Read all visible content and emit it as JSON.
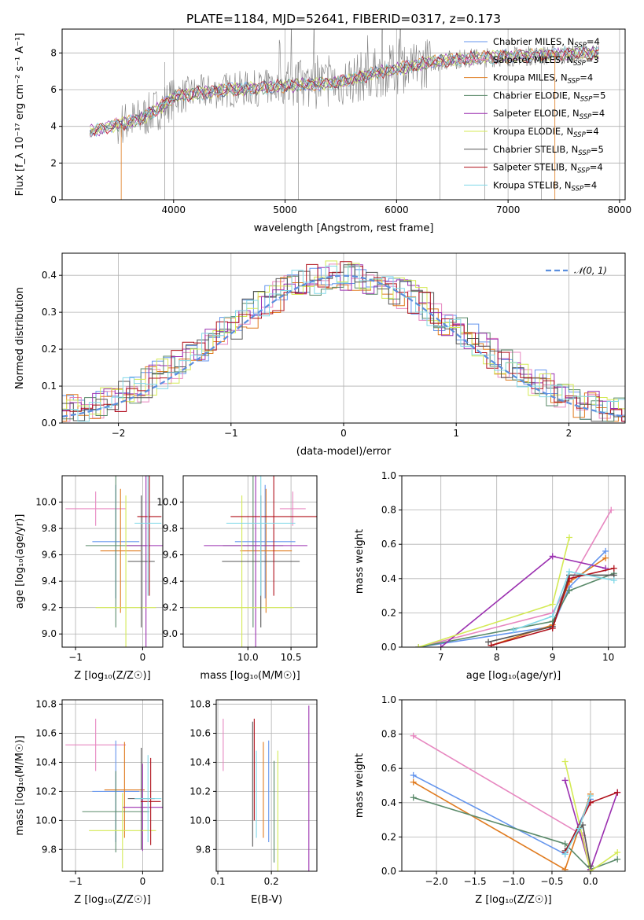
{
  "figure": {
    "title": "PLATE=1184, MJD=52641, FIBERID=0317, z=0.173"
  },
  "colors": {
    "Chabrier MILES": "#6495ed",
    "Salpeter MILES": "#e787c0",
    "Kroupa MILES": "#e07b1f",
    "Chabrier ELODIE": "#5a8a6a",
    "Salpeter ELODIE": "#9b30b0",
    "Kroupa ELODIE": "#d4ea55",
    "Chabrier STELIB": "#555555",
    "Salpeter STELIB": "#b0101a",
    "Kroupa STELIB": "#80d8e8",
    "data": "#808080",
    "normal": "#5b8fde"
  },
  "chart_data": [
    {
      "id": "spectrum",
      "type": "line",
      "xlabel": "wavelength [Angstrom, rest frame]",
      "ylabel": "Flux [f_λ 10⁻¹⁷ erg cm⁻² s⁻¹ A⁻¹]",
      "xlim": [
        3000,
        8050
      ],
      "ylim": [
        0,
        9.3
      ],
      "xticks": [
        4000,
        5000,
        6000,
        7000,
        8000
      ],
      "yticks": [
        0,
        2,
        4,
        6,
        8
      ],
      "legend_position": "top-right",
      "legend": [
        {
          "name": "Chabrier MILES",
          "nssp": "4"
        },
        {
          "name": "Salpeter MILES",
          "nssp": "3"
        },
        {
          "name": "Kroupa MILES",
          "nssp": "4"
        },
        {
          "name": "Chabrier ELODIE",
          "nssp": "5"
        },
        {
          "name": "Salpeter ELODIE",
          "nssp": "4"
        },
        {
          "name": "Kroupa ELODIE",
          "nssp": "4"
        },
        {
          "name": "Chabrier STELIB",
          "nssp": "5"
        },
        {
          "name": "Salpeter STELIB",
          "nssp": "4"
        },
        {
          "name": "Kroupa STELIB",
          "nssp": "4"
        }
      ],
      "continuum": [
        [
          3250,
          3.7
        ],
        [
          3500,
          4.1
        ],
        [
          3700,
          4.4
        ],
        [
          3900,
          5.1
        ],
        [
          4000,
          5.6
        ],
        [
          4200,
          5.8
        ],
        [
          4500,
          6.0
        ],
        [
          4800,
          6.1
        ],
        [
          5000,
          6.2
        ],
        [
          5500,
          6.4
        ],
        [
          5800,
          6.9
        ],
        [
          6000,
          7.1
        ],
        [
          6300,
          7.5
        ],
        [
          6600,
          7.7
        ],
        [
          7000,
          7.8
        ],
        [
          7400,
          7.9
        ],
        [
          7800,
          8.0
        ]
      ]
    },
    {
      "id": "residuals",
      "type": "line",
      "xlabel": "(data-model)/error",
      "ylabel": "Normed distribution",
      "xlim": [
        -2.5,
        2.5
      ],
      "ylim": [
        0,
        0.46
      ],
      "xticks": [
        -2,
        -1,
        0,
        1,
        2
      ],
      "yticks": [
        0.0,
        0.1,
        0.2,
        0.3,
        0.4
      ],
      "legend_position": "top-right",
      "normal_label": "𝒩(0, 1)"
    },
    {
      "id": "age-vs-Z",
      "type": "scatter",
      "xlabel": "Z [log₁₀(Z/Z☉)]",
      "ylabel": "age  [log₁₀(age/yr)]",
      "xlim": [
        -1.2,
        0.3
      ],
      "ylim": [
        8.9,
        10.2
      ],
      "xticks": [
        -1,
        0
      ],
      "yticks": [
        9.0,
        9.2,
        9.4,
        9.6,
        9.8,
        10.0
      ],
      "points": [
        {
          "series": "Salpeter MILES",
          "x": -0.7,
          "xerr": 0.45,
          "y": 9.95,
          "yerr": 0.13
        },
        {
          "series": "Chabrier MILES",
          "x": -0.4,
          "xerr": 0.35,
          "y": 9.7,
          "yerr": 0.43
        },
        {
          "series": "Kroupa MILES",
          "x": -0.33,
          "xerr": 0.3,
          "y": 9.63,
          "yerr": 0.47
        },
        {
          "series": "Chabrier ELODIE",
          "x": -0.4,
          "xerr": 0.45,
          "y": 9.67,
          "yerr": 0.62
        },
        {
          "series": "Salpeter ELODIE",
          "x": 0.05,
          "xerr": 0.3,
          "y": 9.67,
          "yerr": 0.8
        },
        {
          "series": "Kroupa ELODIE",
          "x": -0.25,
          "xerr": 0.45,
          "y": 9.2,
          "yerr": 0.85
        },
        {
          "series": "Chabrier STELIB",
          "x": -0.02,
          "xerr": 0.2,
          "y": 9.55,
          "yerr": 0.5
        },
        {
          "series": "Salpeter STELIB",
          "x": 0.1,
          "xerr": 0.18,
          "y": 9.89,
          "yerr": 0.6
        },
        {
          "series": "Kroupa STELIB",
          "x": 0.08,
          "xerr": 0.2,
          "y": 9.84,
          "yerr": 0.55
        }
      ]
    },
    {
      "id": "age-vs-mass",
      "type": "scatter",
      "xlabel": "mass [log₁₀(M/M☉)]",
      "ylabel": "",
      "xlim": [
        9.25,
        10.8
      ],
      "ylim": [
        8.9,
        10.2
      ],
      "xticks": [
        10.0,
        10.5
      ],
      "yticks": [
        9.0,
        9.2,
        9.4,
        9.6,
        9.8,
        10.0
      ],
      "points": [
        {
          "series": "Salpeter MILES",
          "x": 10.52,
          "xerr": 0.15,
          "y": 9.95,
          "yerr": 0.13
        },
        {
          "series": "Chabrier MILES",
          "x": 10.2,
          "xerr": 0.35,
          "y": 9.7,
          "yerr": 0.43
        },
        {
          "series": "Kroupa MILES",
          "x": 10.21,
          "xerr": 0.3,
          "y": 9.63,
          "yerr": 0.47
        },
        {
          "series": "Chabrier ELODIE",
          "x": 10.06,
          "xerr": 0.35,
          "y": 9.67,
          "yerr": 0.62
        },
        {
          "series": "Salpeter ELODIE",
          "x": 10.09,
          "xerr": 0.6,
          "y": 9.67,
          "yerr": 0.8
        },
        {
          "series": "Kroupa ELODIE",
          "x": 9.93,
          "xerr": 0.6,
          "y": 9.2,
          "yerr": 0.85
        },
        {
          "series": "Chabrier STELIB",
          "x": 10.15,
          "xerr": 0.45,
          "y": 9.55,
          "yerr": 0.5
        },
        {
          "series": "Salpeter STELIB",
          "x": 10.3,
          "xerr": 0.5,
          "y": 9.89,
          "yerr": 0.6
        },
        {
          "series": "Kroupa STELIB",
          "x": 10.15,
          "xerr": 0.4,
          "y": 9.84,
          "yerr": 0.55
        }
      ]
    },
    {
      "id": "weight-vs-age",
      "type": "line",
      "xlabel": "age  [log₁₀(age/yr)]",
      "ylabel": "mass weight",
      "xlim": [
        6.3,
        10.3
      ],
      "ylim": [
        0,
        1.0
      ],
      "xticks": [
        7,
        8,
        9,
        10
      ],
      "yticks": [
        0.0,
        0.2,
        0.4,
        0.6,
        0.8,
        1.0
      ],
      "series": [
        {
          "name": "Chabrier MILES",
          "x": [
            6.6,
            9.0,
            9.3,
            9.95
          ],
          "y": [
            0.0,
            0.12,
            0.35,
            0.56
          ]
        },
        {
          "name": "Salpeter MILES",
          "x": [
            6.6,
            9.0,
            10.05
          ],
          "y": [
            0.0,
            0.2,
            0.8
          ]
        },
        {
          "name": "Kroupa MILES",
          "x": [
            7.9,
            9.0,
            9.3,
            9.95
          ],
          "y": [
            0.01,
            0.13,
            0.38,
            0.52
          ]
        },
        {
          "name": "Chabrier ELODIE",
          "x": [
            6.6,
            9.0,
            9.3,
            10.1
          ],
          "y": [
            0.0,
            0.15,
            0.33,
            0.43
          ]
        },
        {
          "name": "Salpeter ELODIE",
          "x": [
            7.0,
            9.0,
            9.95
          ],
          "y": [
            0.0,
            0.53,
            0.46
          ]
        },
        {
          "name": "Kroupa ELODIE",
          "x": [
            6.6,
            9.0,
            9.3
          ],
          "y": [
            0.0,
            0.25,
            0.64
          ]
        },
        {
          "name": "Chabrier STELIB",
          "x": [
            7.85,
            9.0,
            9.3,
            10.1
          ],
          "y": [
            0.03,
            0.12,
            0.42,
            0.42
          ]
        },
        {
          "name": "Salpeter STELIB",
          "x": [
            7.9,
            9.0,
            9.3,
            10.1
          ],
          "y": [
            0.01,
            0.11,
            0.4,
            0.46
          ]
        },
        {
          "name": "Kroupa STELIB",
          "x": [
            8.3,
            9.0,
            9.3,
            10.1
          ],
          "y": [
            0.1,
            0.18,
            0.44,
            0.39
          ]
        }
      ]
    },
    {
      "id": "mass-vs-Z",
      "type": "scatter",
      "xlabel": "Z [log₁₀(Z/Z☉)]",
      "ylabel": "mass [log₁₀(M/M☉)]",
      "xlim": [
        -1.2,
        0.3
      ],
      "ylim": [
        9.65,
        10.83
      ],
      "xticks": [
        -1,
        0
      ],
      "yticks": [
        9.8,
        10.0,
        10.2,
        10.4,
        10.6,
        10.8
      ],
      "points": [
        {
          "series": "Salpeter MILES",
          "x": -0.7,
          "xerr": 0.45,
          "y": 10.52,
          "yerr": 0.18
        },
        {
          "series": "Chabrier MILES",
          "x": -0.4,
          "xerr": 0.35,
          "y": 10.2,
          "yerr": 0.35
        },
        {
          "series": "Kroupa MILES",
          "x": -0.27,
          "xerr": 0.3,
          "y": 10.21,
          "yerr": 0.33
        },
        {
          "series": "Chabrier ELODIE",
          "x": -0.4,
          "xerr": 0.5,
          "y": 10.06,
          "yerr": 0.28
        },
        {
          "series": "Salpeter ELODIE",
          "x": 0.0,
          "xerr": 0.3,
          "y": 10.09,
          "yerr": 0.3
        },
        {
          "series": "Kroupa ELODIE",
          "x": -0.3,
          "xerr": 0.5,
          "y": 9.93,
          "yerr": 0.26
        },
        {
          "series": "Chabrier STELIB",
          "x": -0.02,
          "xerr": 0.2,
          "y": 10.15,
          "yerr": 0.35
        },
        {
          "series": "Salpeter STELIB",
          "x": 0.12,
          "xerr": 0.15,
          "y": 10.13,
          "yerr": 0.3
        },
        {
          "series": "Kroupa STELIB",
          "x": 0.08,
          "xerr": 0.2,
          "y": 10.15,
          "yerr": 0.3
        }
      ]
    },
    {
      "id": "mass-vs-EBV",
      "type": "scatter",
      "xlabel": "E(B-V)",
      "ylabel": "",
      "xlim": [
        0.097,
        0.285
      ],
      "ylim": [
        9.65,
        10.83
      ],
      "xticks": [
        0.1,
        0.2
      ],
      "yticks": [
        9.8,
        10.0,
        10.2,
        10.4,
        10.6,
        10.8
      ],
      "points": [
        {
          "series": "Salpeter MILES",
          "x": 0.11,
          "y": 10.52,
          "yerr": 0.18
        },
        {
          "series": "Chabrier MILES",
          "x": 0.195,
          "y": 10.2,
          "yerr": 0.35
        },
        {
          "series": "Kroupa MILES",
          "x": 0.185,
          "y": 10.21,
          "yerr": 0.33
        },
        {
          "series": "Chabrier ELODIE",
          "x": 0.205,
          "y": 10.06,
          "yerr": 0.35
        },
        {
          "series": "Salpeter ELODIE",
          "x": 0.27,
          "y": 10.09,
          "yerr": 0.7
        },
        {
          "series": "Kroupa ELODIE",
          "x": 0.212,
          "y": 9.93,
          "yerr": 0.55
        },
        {
          "series": "Chabrier STELIB",
          "x": 0.165,
          "y": 10.25,
          "yerr": 0.43
        },
        {
          "series": "Salpeter STELIB",
          "x": 0.168,
          "y": 10.35,
          "yerr": 0.35
        },
        {
          "series": "Kroupa STELIB",
          "x": 0.172,
          "y": 10.18,
          "yerr": 0.3
        }
      ]
    },
    {
      "id": "weight-vs-Z",
      "type": "line",
      "xlabel": "Z [log₁₀(Z/Z☉)]",
      "ylabel": "mass weight",
      "xlim": [
        -2.45,
        0.45
      ],
      "ylim": [
        0,
        1.0
      ],
      "xticks": [
        -2.0,
        -1.5,
        -1.0,
        -0.5,
        0.0
      ],
      "yticks": [
        0.0,
        0.2,
        0.4,
        0.6,
        0.8,
        1.0
      ],
      "series": [
        {
          "name": "Chabrier MILES",
          "x": [
            -2.3,
            -0.33,
            0.0
          ],
          "y": [
            0.56,
            0.1,
            0.42
          ]
        },
        {
          "name": "Salpeter MILES",
          "x": [
            -2.3,
            -0.1,
            0.0
          ],
          "y": [
            0.79,
            0.21,
            0.0
          ]
        },
        {
          "name": "Kroupa MILES",
          "x": [
            -2.3,
            -0.33,
            0.0
          ],
          "y": [
            0.52,
            0.01,
            0.45
          ]
        },
        {
          "name": "Chabrier ELODIE",
          "x": [
            -2.3,
            -0.33,
            0.0,
            0.35
          ],
          "y": [
            0.43,
            0.16,
            0.01,
            0.07
          ]
        },
        {
          "name": "Salpeter ELODIE",
          "x": [
            -0.33,
            0.0,
            0.35
          ],
          "y": [
            0.53,
            0.01,
            0.46
          ]
        },
        {
          "name": "Kroupa ELODIE",
          "x": [
            -0.33,
            0.0,
            0.35
          ],
          "y": [
            0.64,
            0.0,
            0.11
          ]
        },
        {
          "name": "Chabrier STELIB",
          "x": [
            -0.33,
            -0.1,
            0.0
          ],
          "y": [
            0.12,
            0.27,
            0.03
          ]
        },
        {
          "name": "Salpeter STELIB",
          "x": [
            -0.33,
            0.0,
            0.35
          ],
          "y": [
            0.11,
            0.4,
            0.46
          ]
        },
        {
          "name": "Kroupa STELIB",
          "x": [
            -0.33,
            -0.15,
            0.0
          ],
          "y": [
            0.1,
            0.25,
            0.44
          ]
        }
      ]
    }
  ]
}
